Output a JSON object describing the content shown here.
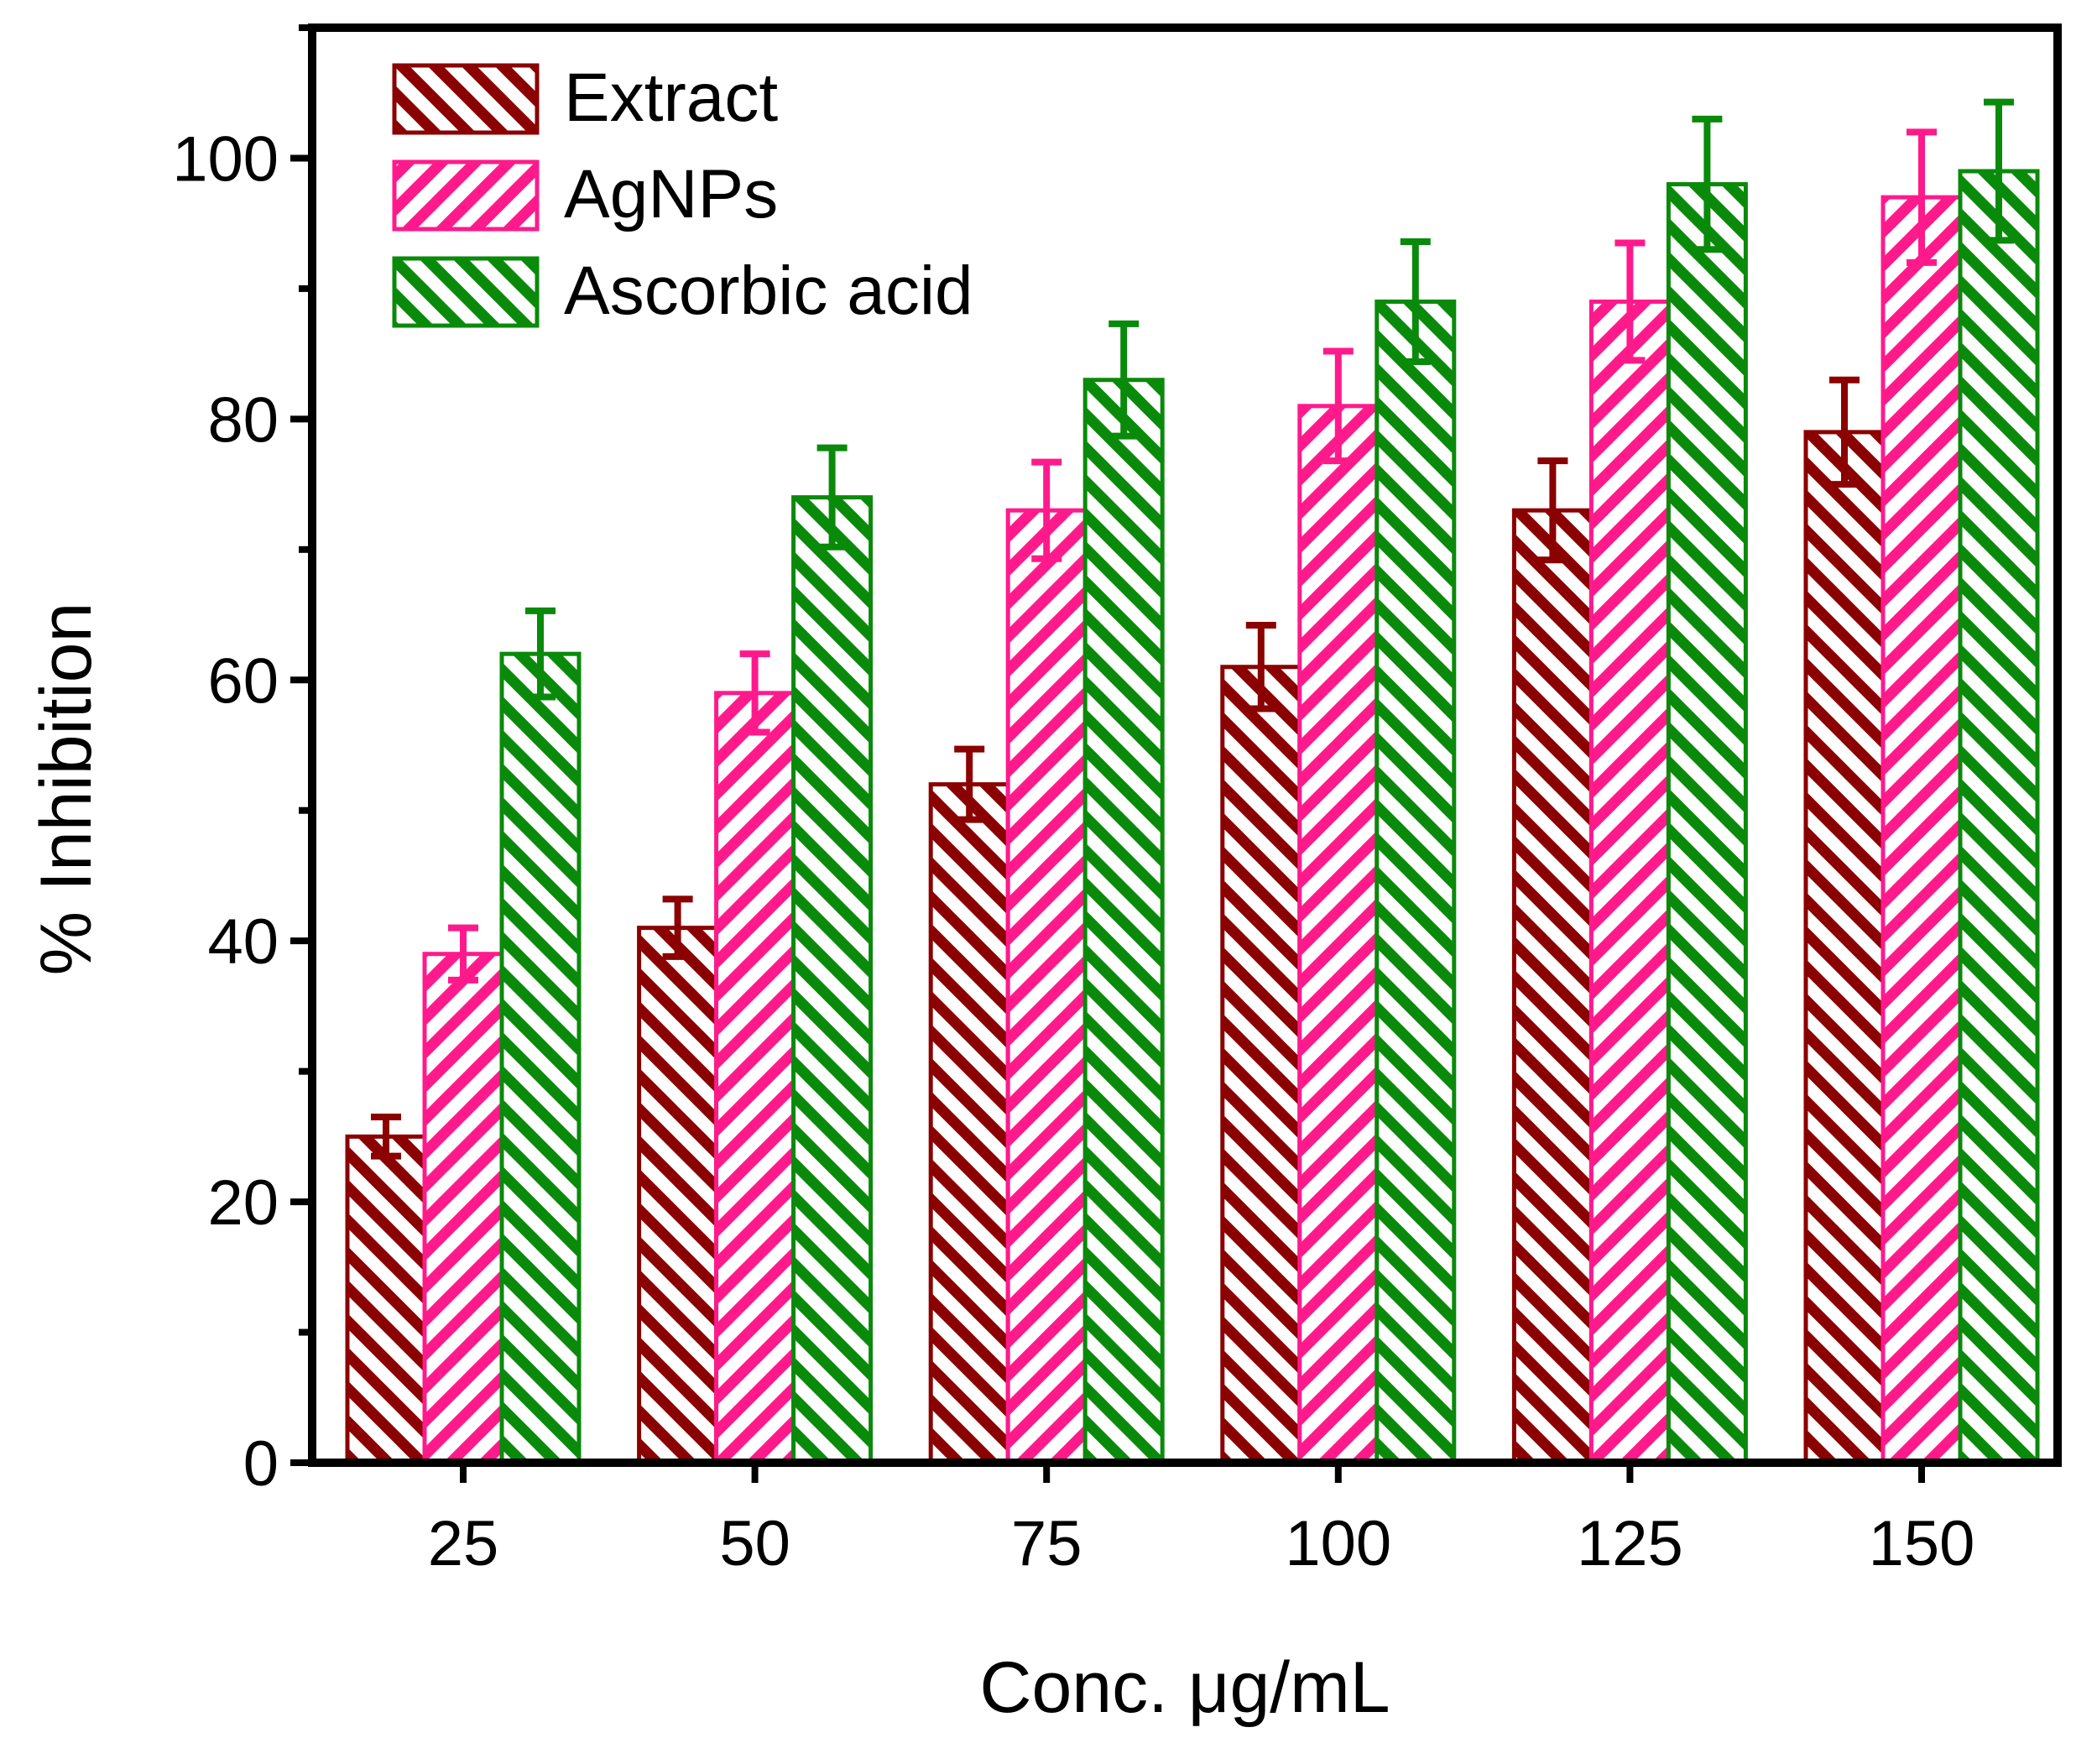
{
  "chart_data": {
    "type": "bar",
    "title": "",
    "xlabel": "Conc. μg/mL",
    "ylabel": "% Inhibition",
    "ylim": [
      0,
      110
    ],
    "yticks": [
      0,
      20,
      40,
      60,
      80,
      100
    ],
    "y_minor_step": 10,
    "grid": false,
    "legend_position": "top-left",
    "categories": [
      "25",
      "50",
      "75",
      "100",
      "125",
      "150"
    ],
    "series": [
      {
        "name": "Extract",
        "color": "#8b0000",
        "values": [
          25,
          41,
          52,
          61,
          73,
          79
        ],
        "errors": [
          1.5,
          2.2,
          2.7,
          3.2,
          3.8,
          4.0
        ]
      },
      {
        "name": "AgNPs",
        "color": "#ff1a8c",
        "values": [
          39,
          59,
          73,
          81,
          89,
          97
        ],
        "errors": [
          2.0,
          3.0,
          3.7,
          4.2,
          4.5,
          5.0
        ]
      },
      {
        "name": "Ascorbic acid",
        "color": "#0a8a0a",
        "values": [
          62,
          74,
          83,
          89,
          98,
          99
        ],
        "errors": [
          3.3,
          3.8,
          4.3,
          4.6,
          5.0,
          5.3
        ]
      }
    ]
  }
}
